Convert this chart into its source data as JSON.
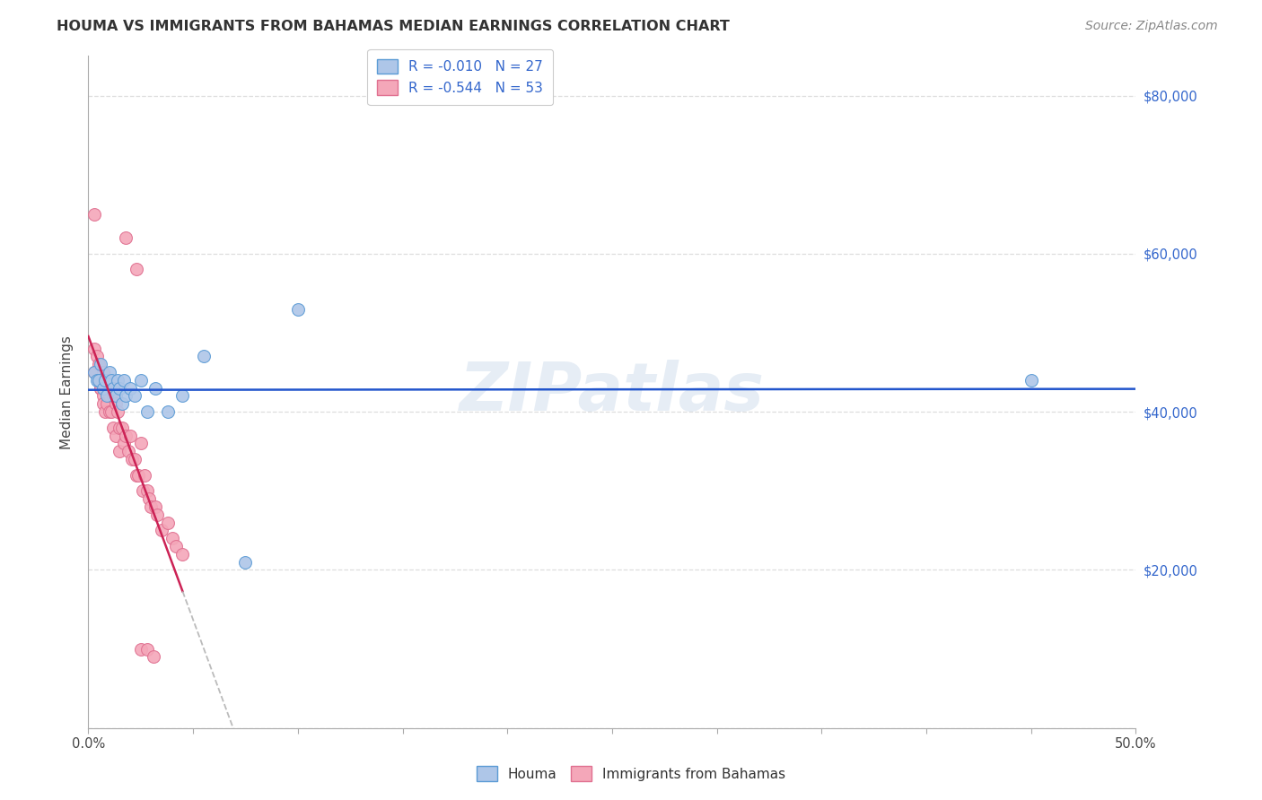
{
  "title": "HOUMA VS IMMIGRANTS FROM BAHAMAS MEDIAN EARNINGS CORRELATION CHART",
  "source": "Source: ZipAtlas.com",
  "ylabel": "Median Earnings",
  "watermark": "ZIPatlas",
  "legend1_r": "-0.010",
  "legend1_n": "27",
  "legend2_r": "-0.544",
  "legend2_n": "53",
  "xlim": [
    0.0,
    0.5
  ],
  "ylim": [
    0,
    85000
  ],
  "yticks": [
    0,
    20000,
    40000,
    60000,
    80000
  ],
  "ytick_labels": [
    "",
    "$20,000",
    "$40,000",
    "$60,000",
    "$80,000"
  ],
  "houma_color": "#aec6e8",
  "bahamas_color": "#f4a7b9",
  "houma_edge": "#5b9bd5",
  "bahamas_edge": "#e07090",
  "trend_houma_color": "#2255cc",
  "trend_bahamas_color": "#cc2255",
  "trend_extend_color": "#bbbbbb",
  "houma_x": [
    0.003,
    0.004,
    0.005,
    0.006,
    0.007,
    0.008,
    0.009,
    0.01,
    0.011,
    0.012,
    0.013,
    0.014,
    0.015,
    0.016,
    0.017,
    0.018,
    0.02,
    0.022,
    0.025,
    0.028,
    0.032,
    0.038,
    0.045,
    0.055,
    0.075,
    0.45,
    0.1
  ],
  "houma_y": [
    45000,
    44000,
    44000,
    46000,
    43000,
    44000,
    42000,
    45000,
    44000,
    43000,
    42000,
    44000,
    43000,
    41000,
    44000,
    42000,
    43000,
    42000,
    44000,
    40000,
    43000,
    40000,
    42000,
    47000,
    21000,
    44000,
    53000
  ],
  "bahamas_x": [
    0.003,
    0.003,
    0.003,
    0.004,
    0.005,
    0.005,
    0.006,
    0.006,
    0.007,
    0.007,
    0.007,
    0.008,
    0.008,
    0.009,
    0.009,
    0.01,
    0.01,
    0.011,
    0.011,
    0.012,
    0.012,
    0.013,
    0.013,
    0.014,
    0.015,
    0.015,
    0.016,
    0.017,
    0.018,
    0.019,
    0.02,
    0.021,
    0.022,
    0.023,
    0.024,
    0.025,
    0.026,
    0.027,
    0.028,
    0.029,
    0.03,
    0.032,
    0.033,
    0.035,
    0.038,
    0.04,
    0.042,
    0.045,
    0.025,
    0.028,
    0.031,
    0.018,
    0.023
  ],
  "bahamas_y": [
    65000,
    48000,
    45000,
    47000,
    46000,
    44000,
    43000,
    43000,
    45000,
    42000,
    41000,
    43000,
    40000,
    44000,
    41000,
    42000,
    40000,
    43000,
    40000,
    42000,
    38000,
    41000,
    37000,
    40000,
    38000,
    35000,
    38000,
    36000,
    37000,
    35000,
    37000,
    34000,
    34000,
    32000,
    32000,
    36000,
    30000,
    32000,
    30000,
    29000,
    28000,
    28000,
    27000,
    25000,
    26000,
    24000,
    23000,
    22000,
    10000,
    10000,
    9000,
    62000,
    58000
  ],
  "background_color": "#ffffff",
  "grid_color": "#dddddd",
  "title_fontsize": 11.5,
  "axis_label_fontsize": 11,
  "tick_fontsize": 10.5,
  "legend_fontsize": 11,
  "source_fontsize": 10,
  "marker_size": 100
}
